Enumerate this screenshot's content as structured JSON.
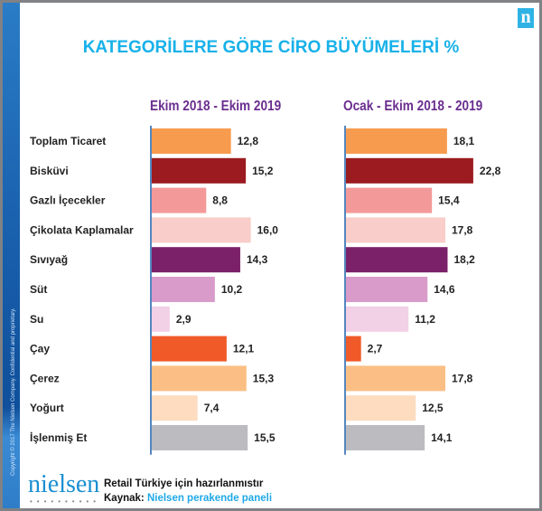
{
  "title": "KATEGORİLERE GÖRE CİRO BÜYÜMELERİ %",
  "copyright": "Copyright © 2017 The Nielsen Company. Confidential and proprietary.",
  "logo_letter": "n",
  "footer": {
    "brand": "nielsen",
    "line1": "Retail Türkiye için hazırlanmıstır",
    "source_label": "Kaynak:",
    "source_value": "Nielsen perakende paneli"
  },
  "chart_data": [
    {
      "type": "bar",
      "orientation": "horizontal",
      "title": "Ekim 2018 - Ekim 2019",
      "categories": [
        "Toplam Ticaret",
        "Bisküvi",
        "Gazlı İçecekler",
        "Çikolata Kaplamalar",
        "Sıvıyağ",
        "Süt",
        "Su",
        "Çay",
        "Çerez",
        "Yoğurt",
        "İşlenmiş Et"
      ],
      "values": [
        12.8,
        15.2,
        8.8,
        16.0,
        14.3,
        10.2,
        2.9,
        12.1,
        15.3,
        7.4,
        15.5
      ],
      "data_labels": [
        "12,8",
        "15,2",
        "8,8",
        "16,0",
        "14,3",
        "10,2",
        "2,9",
        "12,1",
        "15,3",
        "7,4",
        "15,5"
      ],
      "grid": false
    },
    {
      "type": "bar",
      "orientation": "horizontal",
      "title": "Ocak - Ekim 2018 - 2019",
      "categories": [
        "Toplam Ticaret",
        "Bisküvi",
        "Gazlı İçecekler",
        "Çikolata Kaplamalar",
        "Sıvıyağ",
        "Süt",
        "Su",
        "Çay",
        "Çerez",
        "Yoğurt",
        "İşlenmiş Et"
      ],
      "values": [
        18.1,
        22.8,
        15.4,
        17.8,
        18.2,
        14.6,
        11.2,
        2.7,
        17.8,
        12.5,
        14.1
      ],
      "data_labels": [
        "18,1",
        "22,8",
        "15,4",
        "17,8",
        "18,2",
        "14,6",
        "11,2",
        "2,7",
        "17,8",
        "12,5",
        "14,1"
      ],
      "grid": false
    }
  ],
  "colors": [
    "#f79b4f",
    "#9b1b20",
    "#f4999a",
    "#f9cdc9",
    "#7b2169",
    "#d99bc9",
    "#f2d0e6",
    "#f05a28",
    "#fbbf85",
    "#fddcc0",
    "#bcbcc0"
  ],
  "axis_color": "#1b5fa8"
}
